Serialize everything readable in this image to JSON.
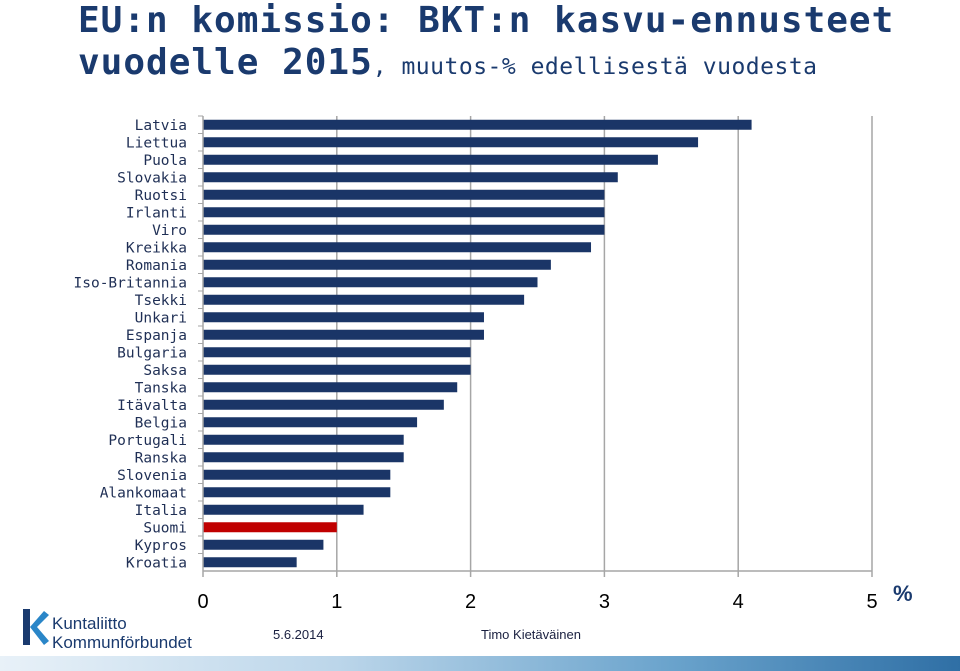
{
  "title": {
    "main_line1": "EU:n komissio: BKT:n kasvu-ennusteet",
    "main_line2": "vuodelle 2015",
    "subtitle": ", muutos-% edellisestä vuodesta"
  },
  "footer": {
    "logo_line1": "Kuntaliitto",
    "logo_line2": "Kommunförbundet",
    "date": "5.6.2014",
    "author": "Timo Kietäväinen"
  },
  "colors": {
    "bar": "#1a3567",
    "highlight": "#c00000",
    "grid": "#a6a6a6",
    "title": "#1a3a6e"
  },
  "chart_data": {
    "type": "bar",
    "orientation": "horizontal",
    "unit": "%",
    "categories": [
      "Latvia",
      "Liettua",
      "Puola",
      "Slovakia",
      "Ruotsi",
      "Irlanti",
      "Viro",
      "Kreikka",
      "Romania",
      "Iso-Britannia",
      "Tsekki",
      "Unkari",
      "Espanja",
      "Bulgaria",
      "Saksa",
      "Tanska",
      "Itävalta",
      "Belgia",
      "Portugali",
      "Ranska",
      "Slovenia",
      "Alankomaat",
      "Italia",
      "Suomi",
      "Kypros",
      "Kroatia"
    ],
    "values": [
      4.1,
      3.7,
      3.4,
      3.1,
      3.0,
      3.0,
      3.0,
      2.9,
      2.6,
      2.5,
      2.4,
      2.1,
      2.1,
      2.0,
      2.0,
      1.9,
      1.8,
      1.6,
      1.5,
      1.5,
      1.4,
      1.4,
      1.2,
      1.0,
      0.9,
      0.7
    ],
    "highlight_category": "Suomi",
    "xlim": [
      0,
      5
    ],
    "xticks": [
      "0",
      "1",
      "2",
      "3",
      "4",
      "5"
    ],
    "grid": true
  }
}
